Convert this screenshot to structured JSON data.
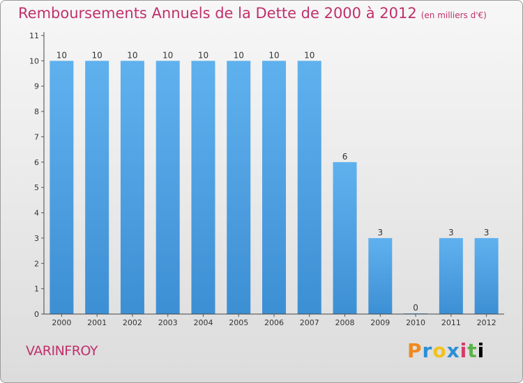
{
  "header": {
    "title": "Remboursements Annuels de la Dette de 2000 à 2012",
    "unit": "(en milliers d'€)"
  },
  "footer": {
    "place": "VARINFROY",
    "logo_letters": [
      "P",
      "r",
      "o",
      "x",
      "i",
      "t",
      "i"
    ]
  },
  "chart_data": {
    "type": "bar",
    "title": "Remboursements Annuels de la Dette de 2000 à 2012",
    "subtitle": "(en milliers d'€)",
    "xlabel": "",
    "ylabel": "",
    "categories": [
      "2000",
      "2001",
      "2002",
      "2003",
      "2004",
      "2005",
      "2006",
      "2007",
      "2008",
      "2009",
      "2010",
      "2011",
      "2012"
    ],
    "values": [
      10,
      10,
      10,
      10,
      10,
      10,
      10,
      10,
      6,
      3,
      0,
      3,
      3
    ],
    "data_labels": [
      "10",
      "10",
      "10",
      "10",
      "10",
      "10",
      "10",
      "10",
      "6",
      "3",
      "0",
      "3",
      "3"
    ],
    "ylim": [
      0,
      11
    ],
    "yticks": [
      "0",
      "1",
      "2",
      "3",
      "4",
      "5",
      "6",
      "7",
      "8",
      "9",
      "10",
      "11"
    ],
    "grid": false,
    "legend": "none",
    "bar_color": "#3d8fd4",
    "bar_color_light": "#5fb1ee",
    "title_color": "#c0306a"
  }
}
